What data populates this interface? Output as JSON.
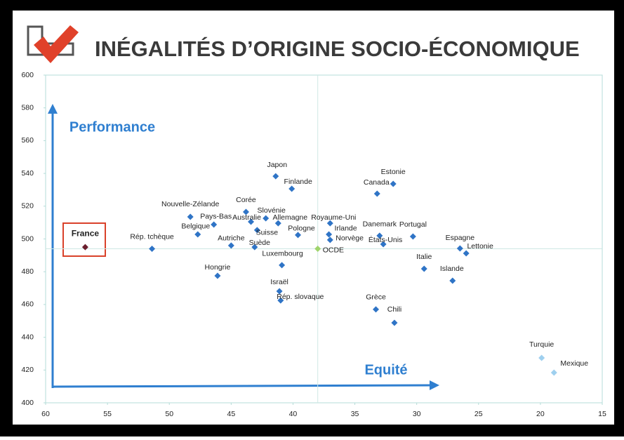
{
  "chart_data": {
    "type": "scatter",
    "title": "INÉGALITÉS D’ORIGINE SOCIO-ÉCONOMIQUE",
    "y_axis_label": "Performance",
    "x_axis_label": "Equité",
    "categories": [
      "France",
      "Rép. tchèque",
      "Nouvelle-Zélande",
      "Pays-Bas",
      "Belgique",
      "Hongrie",
      "Autriche",
      "Corée",
      "Australie",
      "Slovénie",
      "Suisse",
      "Suède",
      "Allemagne",
      "Japon",
      "Finlande",
      "Luxembourg",
      "Israël",
      "Rép. slovaque",
      "Pologne",
      "Royaume-Uni",
      "Irlande",
      "Norvège",
      "OCDE",
      "Danemark",
      "États-Unis",
      "Canada",
      "Estonie",
      "Portugal",
      "Italie",
      "Islande",
      "Espagne",
      "Lettonie",
      "Grèce",
      "Chili",
      "Turquie",
      "Mexique"
    ],
    "x": [
      56.8,
      51.4,
      48.3,
      46.4,
      47.7,
      46.1,
      45.0,
      43.8,
      43.4,
      42.2,
      42.9,
      43.1,
      41.2,
      41.4,
      40.1,
      40.9,
      41.1,
      41.0,
      39.6,
      37.0,
      37.1,
      37.0,
      38.0,
      33.0,
      32.7,
      33.2,
      31.9,
      30.3,
      29.4,
      27.1,
      26.5,
      26.0,
      33.3,
      31.8,
      19.9,
      18.9
    ],
    "values": [
      495,
      494,
      513.5,
      508.8,
      502.8,
      477.5,
      496,
      516.5,
      510.5,
      512.6,
      505.4,
      495,
      509.6,
      538.3,
      530.6,
      484,
      468.1,
      462.5,
      502.4,
      509.6,
      502.8,
      499.4,
      494,
      502,
      496.8,
      527.6,
      533.6,
      501.5,
      481.8,
      474.5,
      494.2,
      491.2,
      457,
      448.8,
      427.4,
      418.4
    ],
    "colors": [
      "#6b1f2e",
      "#2f74c6",
      "#2f74c6",
      "#2f74c6",
      "#2f74c6",
      "#2f74c6",
      "#2f74c6",
      "#2f74c6",
      "#2f74c6",
      "#2f74c6",
      "#2f74c6",
      "#2f74c6",
      "#2f74c6",
      "#2f74c6",
      "#2f74c6",
      "#2f74c6",
      "#2f74c6",
      "#2f74c6",
      "#2f74c6",
      "#2f74c6",
      "#2f74c6",
      "#2f74c6",
      "#9fd46c",
      "#2f74c6",
      "#2f74c6",
      "#2f74c6",
      "#2f74c6",
      "#2f74c6",
      "#2f74c6",
      "#2f74c6",
      "#2f74c6",
      "#2f74c6",
      "#2f74c6",
      "#2f74c6",
      "#9fd0ef",
      "#9fd0ef"
    ],
    "xlim": [
      60,
      15
    ],
    "xticks": [
      60,
      55,
      50,
      45,
      40,
      35,
      30,
      25,
      20,
      15
    ],
    "ylim": [
      400,
      600
    ],
    "yticks": [
      400,
      420,
      440,
      460,
      480,
      500,
      520,
      540,
      560,
      580,
      600
    ],
    "reference_lines": {
      "x": 38.0,
      "y": 494
    }
  }
}
